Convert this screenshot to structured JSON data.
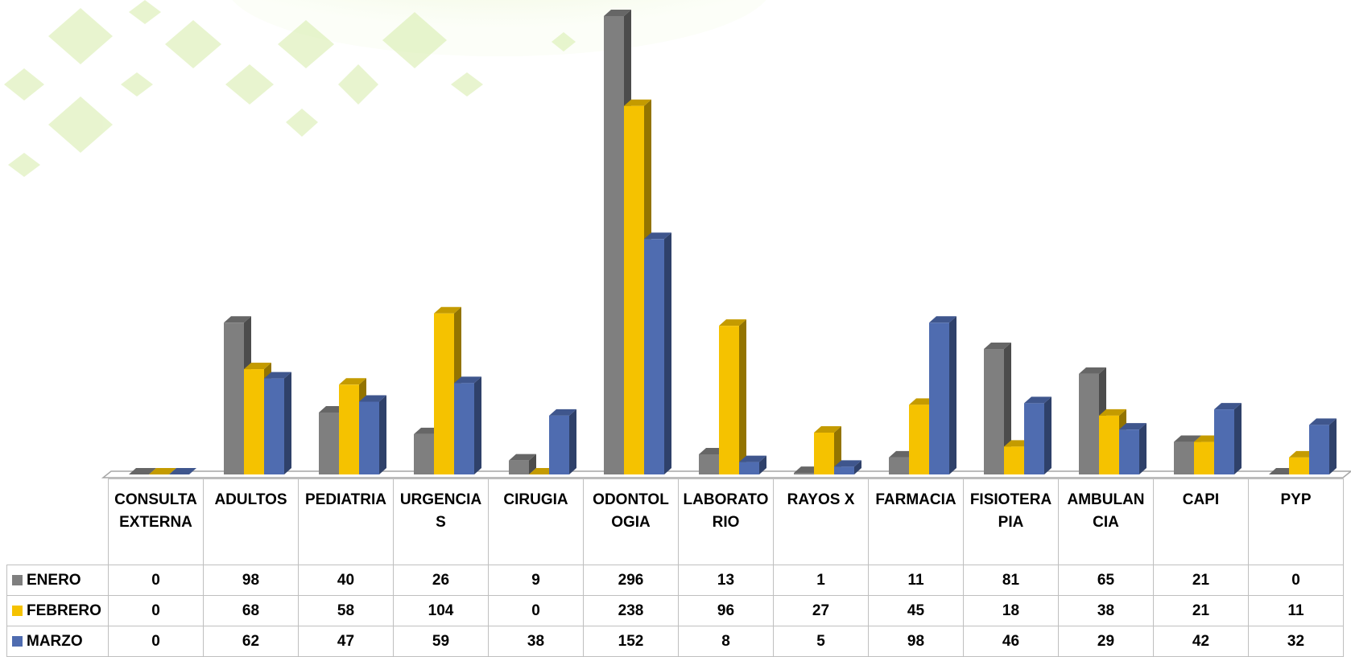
{
  "chart_data": {
    "type": "bar3d",
    "categories": [
      "CONSULTA EXTERNA",
      "ADULTOS",
      "PEDIATRIA",
      "URGENCIAS",
      "CIRUGIA",
      "ODONTOLOGIA",
      "LABORATORIO",
      "RAYOS X",
      "FARMACIA",
      "FISIOTERAPIA",
      "AMBULANCIA",
      "CAPI",
      "PYP"
    ],
    "series": [
      {
        "name": "ENERO",
        "color": "#7f7f7f",
        "values": [
          0,
          98,
          40,
          26,
          9,
          296,
          13,
          1,
          11,
          81,
          65,
          21,
          0
        ]
      },
      {
        "name": "FEBRERO",
        "color": "#f5c200",
        "values": [
          0,
          68,
          58,
          104,
          0,
          238,
          96,
          27,
          45,
          18,
          38,
          21,
          11
        ]
      },
      {
        "name": "MARZO",
        "color": "#4f6cb0",
        "values": [
          0,
          62,
          47,
          59,
          38,
          152,
          8,
          5,
          98,
          46,
          29,
          42,
          32
        ]
      }
    ]
  }
}
